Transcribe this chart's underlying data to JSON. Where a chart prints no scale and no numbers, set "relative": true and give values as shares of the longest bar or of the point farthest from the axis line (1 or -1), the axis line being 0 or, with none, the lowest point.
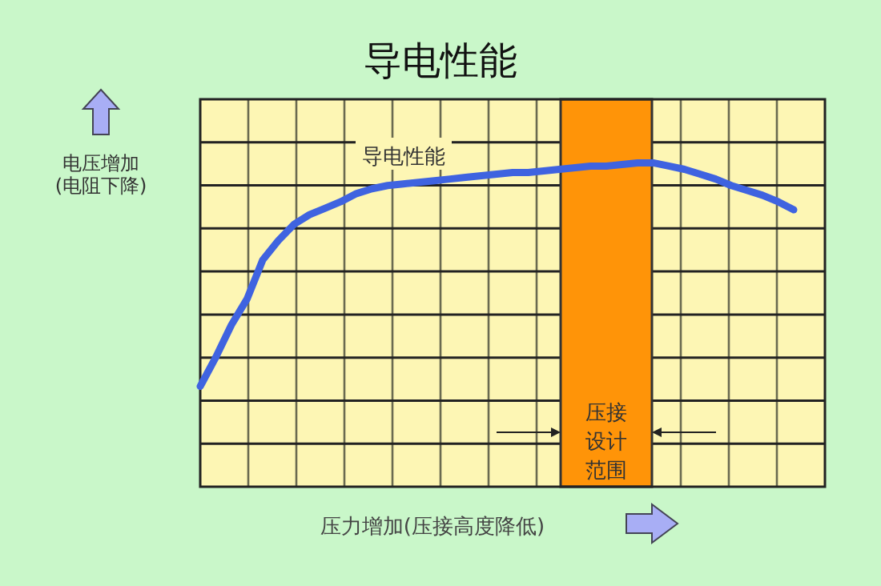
{
  "chart_data": {
    "type": "line",
    "title": "导电性能",
    "xlabel": "压力增加(压接高度降低)",
    "ylabel": "电压增加(电阻下降)",
    "relative": true,
    "grid": true,
    "categories": [
      null,
      null,
      null,
      null,
      null,
      null,
      null,
      null,
      null,
      null,
      null,
      null,
      null,
      null,
      null,
      null,
      null,
      null,
      null,
      null,
      null,
      null,
      null,
      null,
      null,
      null,
      null,
      null,
      null,
      null,
      null,
      null,
      null,
      null,
      null,
      null,
      null,
      null,
      null,
      null
    ],
    "series": [
      {
        "name": "导电性能",
        "color": "#3f63e0",
        "values": [
          0.31,
          0.4,
          0.5,
          0.58,
          0.7,
          0.76,
          0.81,
          0.84,
          0.86,
          0.88,
          0.905,
          0.92,
          0.93,
          0.935,
          0.94,
          0.945,
          0.95,
          0.955,
          0.96,
          0.965,
          0.97,
          0.97,
          0.975,
          0.98,
          0.985,
          0.99,
          0.99,
          0.995,
          1.0,
          1.0,
          0.99,
          0.98,
          0.965,
          0.95,
          0.93,
          0.915,
          0.9,
          0.88,
          0.855,
          null
        ]
      }
    ],
    "annotations": [
      "压接设计范围"
    ]
  }
}
